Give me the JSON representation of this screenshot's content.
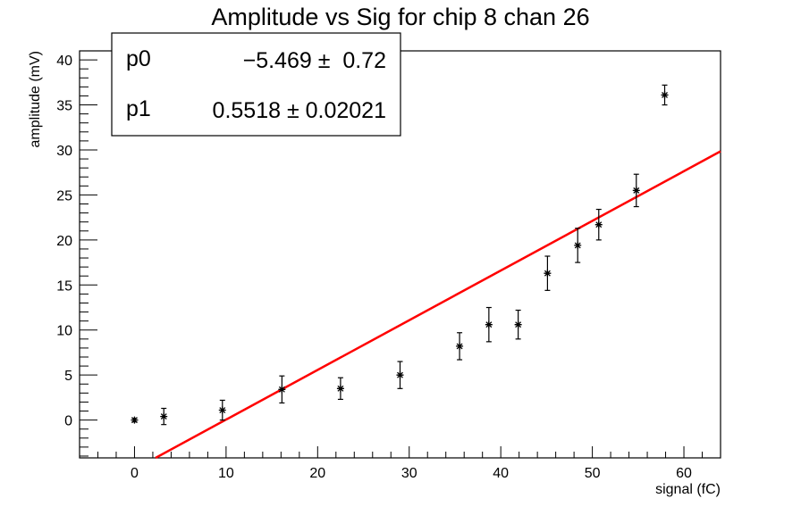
{
  "chart_data": {
    "type": "scatter",
    "title": "Amplitude vs Sig for chip 8 chan 26",
    "xlabel": "signal (fC)",
    "ylabel": "amplitude (mV)",
    "xlim": [
      -6,
      64
    ],
    "ylim": [
      -4.2,
      41
    ],
    "xticks": [
      0,
      10,
      20,
      30,
      40,
      50,
      60
    ],
    "yticks": [
      0,
      5,
      10,
      15,
      20,
      25,
      30,
      35,
      40
    ],
    "grid": false,
    "series": [
      {
        "name": "data",
        "marker": "star",
        "color": "#000000",
        "x": [
          0,
          3.2,
          9.6,
          16.1,
          22.5,
          29.0,
          35.5,
          38.7,
          41.9,
          45.1,
          48.4,
          50.7,
          54.8,
          57.9
        ],
        "y": [
          0,
          0.4,
          1.1,
          3.4,
          3.5,
          5.0,
          8.2,
          10.6,
          10.6,
          16.3,
          19.4,
          21.7,
          25.5,
          36.1
        ],
        "err": [
          0.2,
          0.9,
          1.1,
          1.5,
          1.2,
          1.5,
          1.5,
          1.9,
          1.6,
          1.9,
          1.9,
          1.7,
          1.8,
          1.1
        ]
      }
    ],
    "fit": {
      "name": "linear fit",
      "color": "#ff0000",
      "p0": -5.469,
      "p1": 0.5518
    },
    "stats_box": {
      "position": "top-left",
      "rows": [
        {
          "name": "p0",
          "value": "−5.469 ±  0.72"
        },
        {
          "name": "p1",
          "value": "0.5518 ± 0.02021"
        }
      ]
    }
  }
}
